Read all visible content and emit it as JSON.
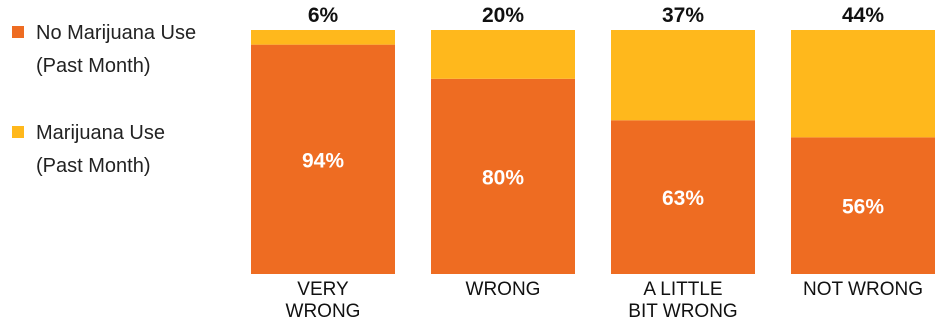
{
  "legend": [
    {
      "line1": "No Marijuana Use",
      "line2": "(Past Month)",
      "color": "#EE6C22"
    },
    {
      "line1": "Marijuana Use",
      "line2": "(Past Month)",
      "color": "#FFB81C"
    }
  ],
  "chart_data": {
    "type": "bar",
    "stacked": true,
    "legend_position": "left",
    "grid": false,
    "ylim": [
      0,
      100
    ],
    "categories": [
      [
        "VERY",
        "WRONG"
      ],
      [
        "WRONG"
      ],
      [
        "A LITTLE",
        "BIT WRONG"
      ],
      [
        "NOT WRONG"
      ]
    ],
    "series": [
      {
        "name": "No Marijuana Use (Past Month)",
        "color": "#EE6C22",
        "values": [
          94,
          80,
          63,
          56
        ],
        "labels": [
          "94%",
          "80%",
          "63%",
          "56%"
        ]
      },
      {
        "name": "Marijuana Use (Past Month)",
        "color": "#FFB81C",
        "values": [
          6,
          20,
          37,
          44
        ],
        "labels": [
          "6%",
          "20%",
          "37%",
          "44%"
        ]
      }
    ]
  }
}
